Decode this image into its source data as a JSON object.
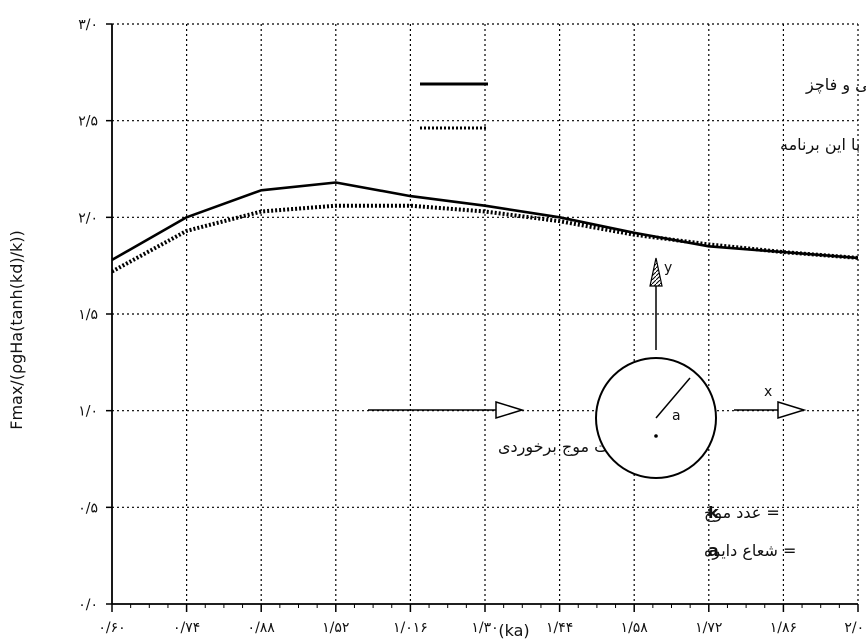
{
  "chart_data": {
    "type": "line",
    "xlabel": "(ka)",
    "ylabel": "Fmax/(ρgHa(tanh(kd)/k))",
    "x_tick_labels": [
      "۰/۶۰",
      "۰/۷۴",
      "۰/۸۸",
      "۱/۵۲",
      "۱/۰۱۶",
      "۱/۳۰",
      "۱/۴۴",
      "۱/۵۸",
      "۱/۷۲",
      "۱/۸۶",
      "۲/۰۰"
    ],
    "y_tick_labels": [
      "۰/۰",
      "۰/۵",
      "۱/۰",
      "۱/۵",
      "۲/۰",
      "۲/۵",
      "۳/۰"
    ],
    "yticks": [
      0,
      0.5,
      1.0,
      1.5,
      2.0,
      2.5,
      3.0
    ],
    "ylim": [
      0,
      3.0
    ],
    "grid": true,
    "legend_position": "top-right",
    "series": [
      {
        "name": "راه حل صحیح با مک کورنی و فاچز",
        "style": "solid",
        "color": "#000000",
        "x": [
          0,
          1,
          2,
          3,
          4,
          5,
          6,
          7,
          8,
          9,
          10
        ],
        "values": [
          1.78,
          2.0,
          2.14,
          2.18,
          2.11,
          2.06,
          2.0,
          1.92,
          1.85,
          1.82,
          1.79
        ]
      },
      {
        "name": "محاسبه شده با این برنامه",
        "style": "dotted",
        "color": "#000000",
        "x": [
          0,
          1,
          2,
          3,
          4,
          5,
          6,
          7,
          8,
          9,
          10
        ],
        "values": [
          1.72,
          1.93,
          2.03,
          2.06,
          2.06,
          2.03,
          1.98,
          1.91,
          1.86,
          1.82,
          1.79
        ]
      }
    ],
    "annotations": {
      "incident_wave": "جهت موج برخوردی",
      "y_axis": "y",
      "x_axis": "x",
      "radius_symbol": "a",
      "k_def": "= عدد موج",
      "k_symbol": "k",
      "a_def": "= شعاع دایره",
      "a_symbol": "a"
    }
  }
}
